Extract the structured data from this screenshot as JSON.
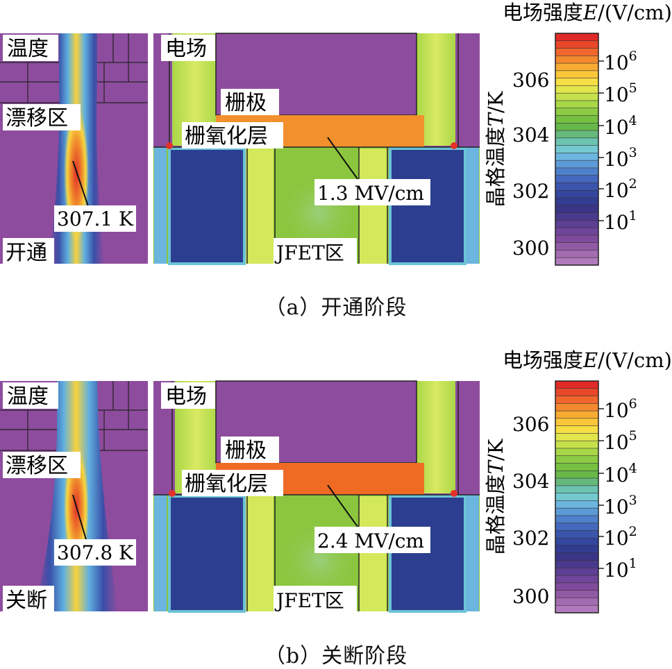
{
  "colors": {
    "purple": "#8e4c9e",
    "navy": "#2b3e8f",
    "green": "#8cc63e",
    "lightgreen": "#c9e45a",
    "orange_a": "#f2902d",
    "orange_b": "#ef6b24",
    "red": "#e4312b"
  },
  "colorbar": {
    "colors": [
      "#e02a27",
      "#e9472a",
      "#f0662c",
      "#f5892e",
      "#f8ab32",
      "#fbc73a",
      "#f6de45",
      "#e2e64d",
      "#c6e04c",
      "#a9d748",
      "#8ccb43",
      "#76c042",
      "#67b74a",
      "#66b97d",
      "#6bc3b0",
      "#74c9d1",
      "#6bb5df",
      "#5d9bd8",
      "#4f80cc",
      "#4468bd",
      "#3b55ad",
      "#34469e",
      "#323c91",
      "#3a3587",
      "#4a3a8d",
      "#5d3f94",
      "#6f4599",
      "#804b9c",
      "#915aa5",
      "#a36bb0",
      "#b17abc"
    ],
    "temp_ticks": [
      "306",
      "304",
      "302",
      "300"
    ],
    "field_ticks": [
      "10",
      "10",
      "10",
      "10",
      "10",
      "10"
    ],
    "field_exps": [
      "6",
      "5",
      "4",
      "3",
      "2",
      "1"
    ],
    "field_title": "电场强度E/(V/cm)",
    "temp_title": "晶格温度T/K"
  },
  "panels": [
    {
      "id": "a",
      "temp_label": "温度",
      "drift_label": "漂移区",
      "peak_temp_label": "307.1 K",
      "state_label": "开通",
      "field_label": "电场",
      "gate_label": "栅极",
      "oxide_label": "栅氧化层",
      "oxide_field_label": "1.3 MV/cm",
      "jfet_label": "JFET区",
      "caption": "（a）开通阶段",
      "oxide_color": "#f2902d"
    },
    {
      "id": "b",
      "temp_label": "温度",
      "drift_label": "漂移区",
      "peak_temp_label": "307.8 K",
      "state_label": "关断",
      "field_label": "电场",
      "gate_label": "栅极",
      "oxide_label": "栅氧化层",
      "oxide_field_label": "2.4 MV/cm",
      "jfet_label": "JFET区",
      "caption": "（b）关断阶段",
      "oxide_color": "#ef6b24"
    }
  ]
}
